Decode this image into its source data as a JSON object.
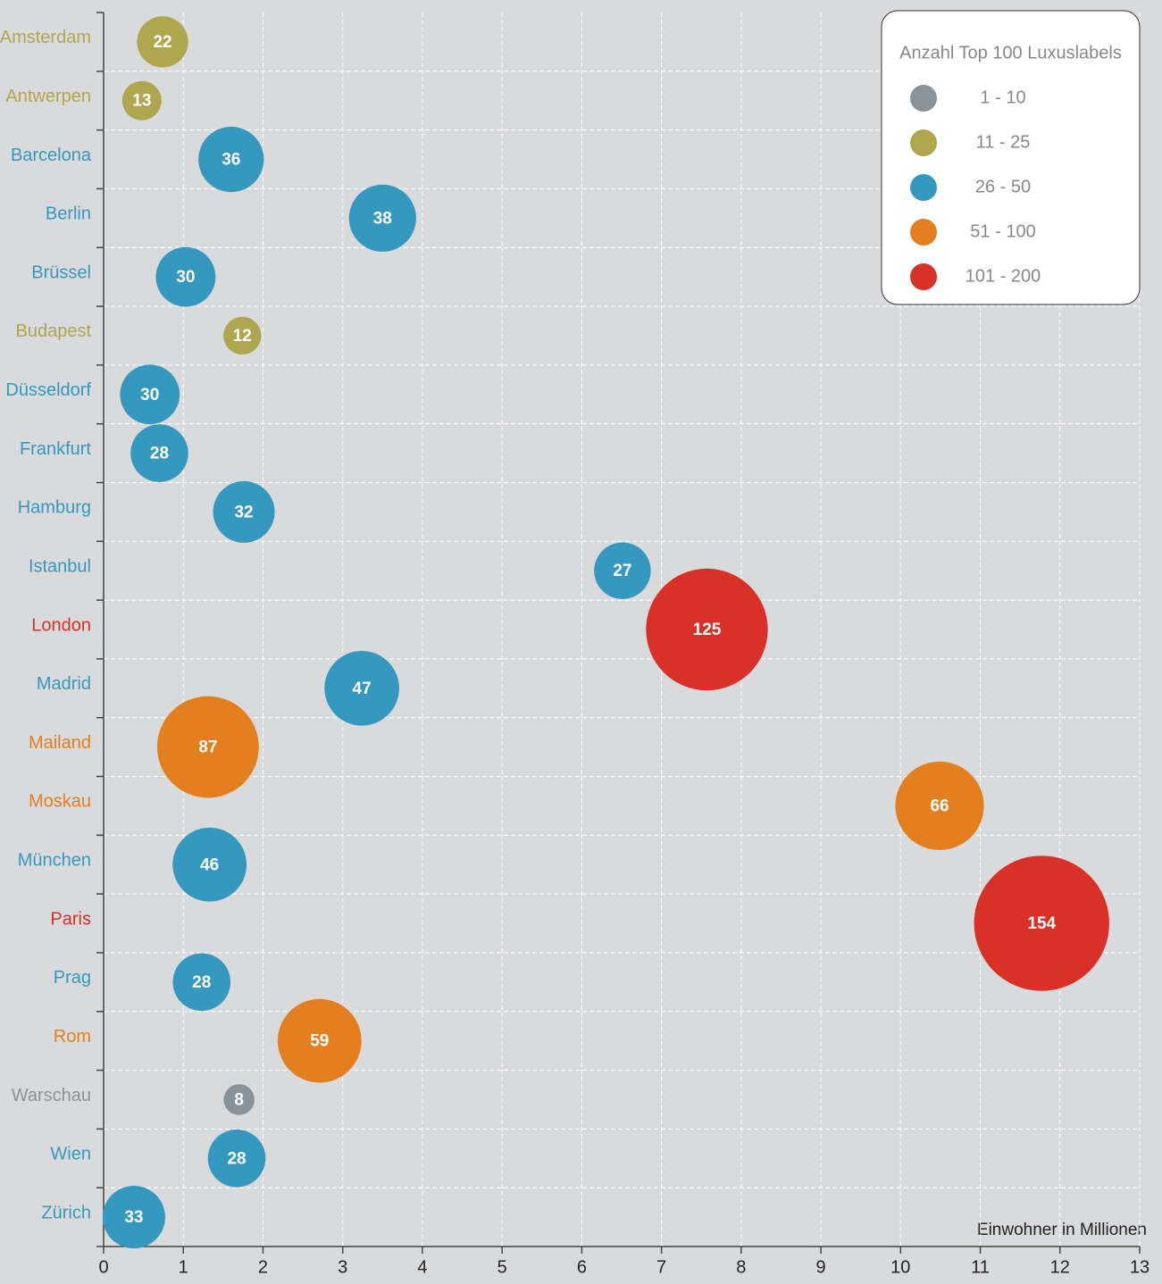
{
  "chart_data": {
    "type": "bubble",
    "categories": [
      "Amsterdam",
      "Antwerpen",
      "Barcelona",
      "Berlin",
      "Brüssel",
      "Budapest",
      "Düsseldorf",
      "Frankfurt",
      "Hamburg",
      "Istanbul",
      "London",
      "Madrid",
      "Mailand",
      "Moskau",
      "München",
      "Paris",
      "Prag",
      "Rom",
      "Warschau",
      "Wien",
      "Zürich"
    ],
    "x": [
      0.74,
      0.48,
      1.6,
      3.5,
      1.03,
      1.74,
      0.58,
      0.7,
      1.76,
      6.51,
      7.57,
      3.24,
      1.31,
      10.49,
      1.33,
      11.77,
      1.23,
      2.71,
      1.7,
      1.67,
      0.38
    ],
    "sizes": [
      22,
      13,
      36,
      38,
      30,
      12,
      30,
      28,
      32,
      27,
      125,
      47,
      87,
      66,
      46,
      154,
      28,
      59,
      8,
      28,
      33
    ],
    "colors": [
      "#b0a64e",
      "#b0a64e",
      "#3598bf",
      "#3598bf",
      "#3598bf",
      "#b0a64e",
      "#3598bf",
      "#3598bf",
      "#3598bf",
      "#3598bf",
      "#d93027",
      "#3598bf",
      "#e47f20",
      "#e47f20",
      "#3598bf",
      "#d93027",
      "#3598bf",
      "#e47f20",
      "#8a9299",
      "#3598bf",
      "#3598bf"
    ],
    "x_label": "Einwohner in Millionen",
    "xlim": [
      0,
      13
    ],
    "xticks": [
      0,
      1,
      2,
      3,
      4,
      5,
      6,
      7,
      8,
      9,
      10,
      11,
      12,
      13
    ],
    "grid": true,
    "legend": {
      "title": "Anzahl Top 100 Luxuslabels",
      "position": "upper right",
      "items": [
        {
          "label": "1 - 10",
          "color": "#8a9299"
        },
        {
          "label": "11 - 25",
          "color": "#b0a64e"
        },
        {
          "label": "26 - 50",
          "color": "#3598bf"
        },
        {
          "label": "51 - 100",
          "color": "#e47f20"
        },
        {
          "label": "101 - 200",
          "color": "#d93027"
        }
      ]
    }
  }
}
